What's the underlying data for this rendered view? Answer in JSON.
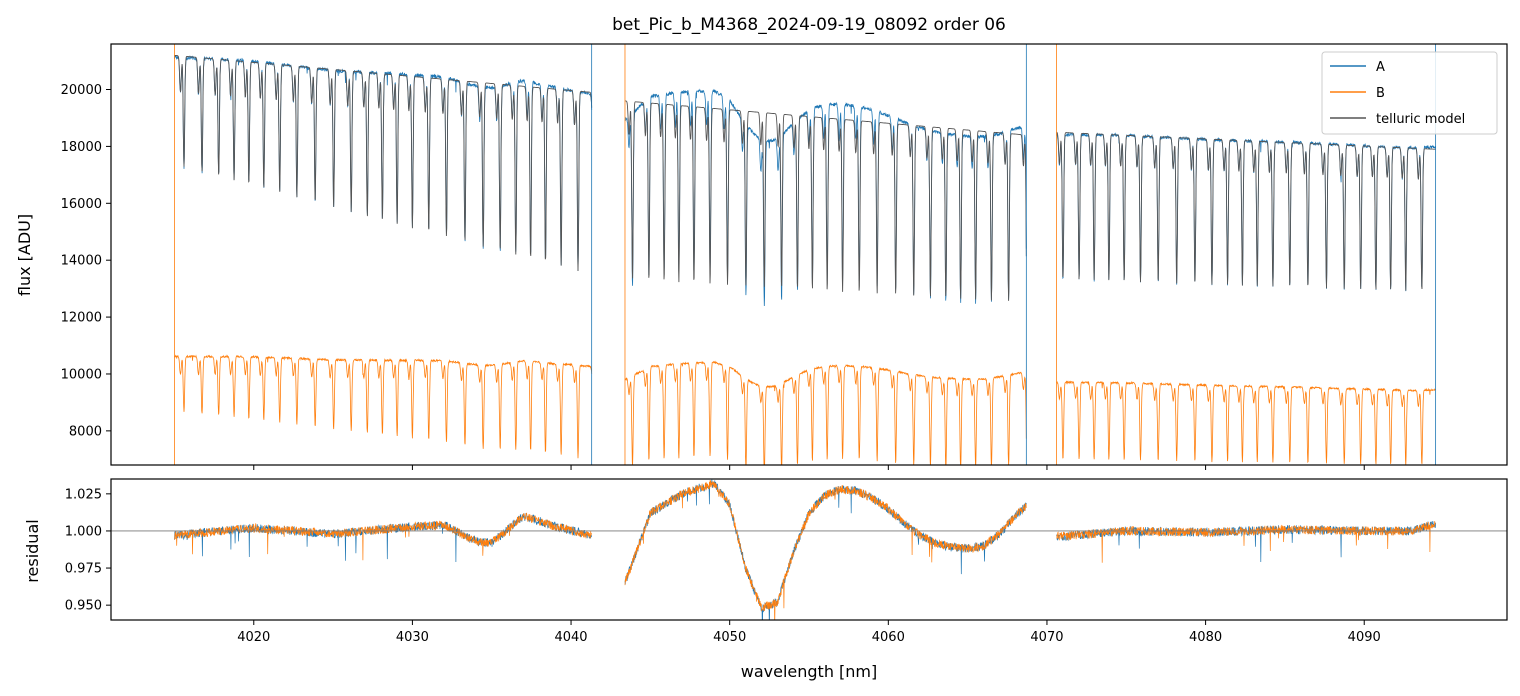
{
  "figure": {
    "title": "bet_Pic_b_M4368_2024-09-19_08092  order 06"
  },
  "colors": {
    "A": "#1f77b4",
    "B": "#ff7f0e",
    "model": "#555555",
    "hline": "#777777"
  },
  "chart_data": [
    {
      "type": "line",
      "title": "bet_Pic_b_M4368_2024-09-19_08092  order 06",
      "xlabel": "",
      "ylabel": "flux [ADU]",
      "xlim": [
        4011,
        4099
      ],
      "ylim": [
        6800,
        21600
      ],
      "yticks": [
        8000,
        10000,
        12000,
        14000,
        16000,
        18000,
        20000
      ],
      "xticks": [
        4020,
        4030,
        4040,
        4050,
        4060,
        4070,
        4080,
        4090
      ],
      "legend": {
        "position": "top-right",
        "entries": [
          "A",
          "B",
          "telluric model"
        ]
      },
      "grid": false,
      "segments": [
        {
          "start": 4015,
          "end": 4041.3,
          "A_continuum_start": 21200,
          "A_continuum_end": 19900,
          "B_continuum_start": 10650,
          "B_continuum_end": 10300
        },
        {
          "start": 4043.4,
          "end": 4068.7,
          "A_continuum_start": 19600,
          "A_continuum_end": 18400,
          "B_continuum_start": 10150,
          "B_continuum_end": 9900
        },
        {
          "start": 4070.6,
          "end": 4094.5,
          "A_continuum_start": 18500,
          "A_continuum_end": 17900,
          "B_continuum_start": 9750,
          "B_continuum_end": 9400
        }
      ],
      "series": [
        {
          "name": "A",
          "description_key": "A"
        },
        {
          "name": "B",
          "description_key": "B"
        },
        {
          "name": "telluric model",
          "description_key": "model"
        }
      ]
    },
    {
      "type": "line",
      "xlabel": "wavelength [nm]",
      "ylabel": "residual",
      "xlim": [
        4011,
        4099
      ],
      "ylim": [
        0.94,
        1.035
      ],
      "yticks": [
        0.95,
        0.975,
        1.0,
        1.025
      ],
      "xticks": [
        4020,
        4030,
        4040,
        4050,
        4060,
        4070,
        4080,
        4090
      ],
      "reference_line": 1.0,
      "residual_trend": {
        "x": [
          4015,
          4020,
          4025,
          4030,
          4032,
          4034,
          4035,
          4037,
          4039,
          4041.3,
          4043.4,
          4045,
          4047,
          4049,
          4050,
          4051,
          4052,
          4053,
          4054,
          4055,
          4056,
          4057,
          4058,
          4059,
          4060,
          4061,
          4062,
          4063,
          4064,
          4065,
          4066,
          4067,
          4068,
          4068.7,
          4070.6,
          4075,
          4080,
          4085,
          4090,
          4093,
          4094.5
        ],
        "y": [
          0.997,
          1.002,
          0.998,
          1.003,
          1.004,
          0.993,
          0.992,
          1.01,
          1.003,
          0.997,
          0.965,
          1.012,
          1.025,
          1.032,
          1.018,
          0.975,
          0.948,
          0.952,
          0.985,
          1.012,
          1.024,
          1.028,
          1.027,
          1.022,
          1.015,
          1.005,
          0.997,
          0.992,
          0.989,
          0.988,
          0.99,
          0.998,
          1.01,
          1.017,
          0.996,
          1.0,
          0.999,
          1.001,
          1.0,
          1.0,
          1.005
        ]
      }
    }
  ],
  "tick_labels": {
    "top_y": [
      "8000",
      "10000",
      "12000",
      "14000",
      "16000",
      "18000",
      "20000"
    ],
    "bottom_y": [
      "0.950",
      "0.975",
      "1.000",
      "1.025"
    ],
    "x": [
      "4020",
      "4030",
      "4040",
      "4050",
      "4060",
      "4070",
      "4080",
      "4090"
    ]
  },
  "labels": {
    "top_ylabel": "flux [ADU]",
    "bottom_ylabel": "residual",
    "xlabel": "wavelength [nm]",
    "legend_A": "A",
    "legend_B": "B",
    "legend_model": "telluric model"
  }
}
